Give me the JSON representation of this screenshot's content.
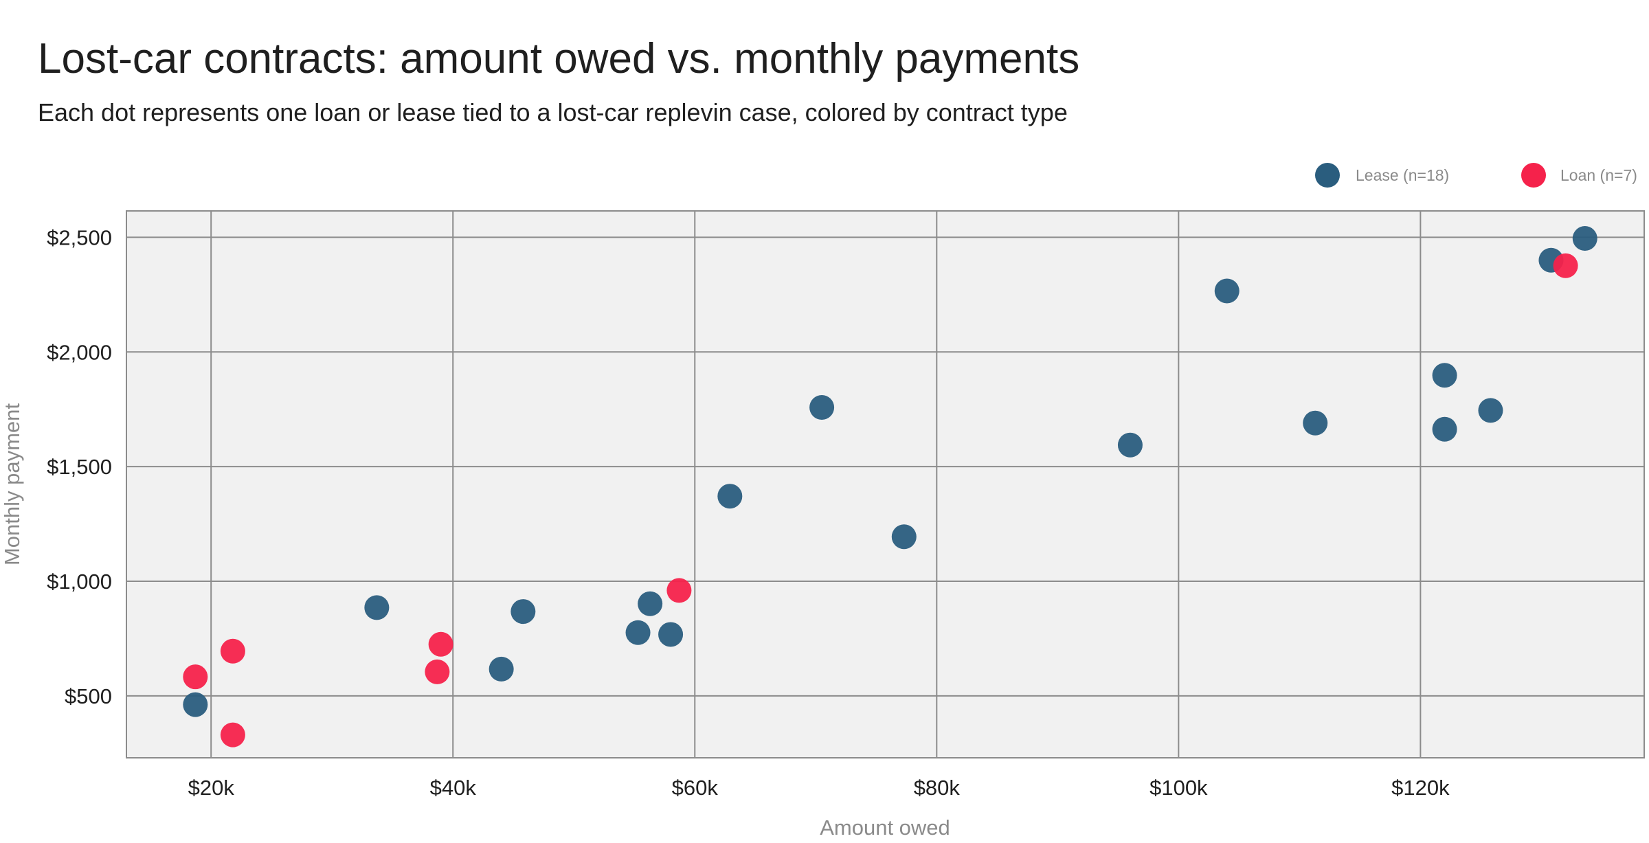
{
  "chart_data": {
    "type": "scatter",
    "title": "Lost-car contracts: amount owed vs. monthly payments",
    "subtitle": "Each dot represents one loan or lease tied to a lost-car replevin case, colored by contract type",
    "xlabel": "Amount owed",
    "ylabel": "Monthly payment",
    "xlim": [
      13000,
      138500
    ],
    "ylim": [
      230,
      2615
    ],
    "xticks": [
      20000,
      40000,
      60000,
      80000,
      100000,
      120000
    ],
    "xtick_labels": [
      "$20k",
      "$40k",
      "$60k",
      "$80k",
      "$100k",
      "$120k"
    ],
    "yticks": [
      500,
      1000,
      1500,
      2000,
      2500
    ],
    "ytick_labels": [
      "$500",
      "$1,000",
      "$1,500",
      "$2,000",
      "$2,500"
    ],
    "grid": true,
    "legend_position": "top-right",
    "series": [
      {
        "name": "Lease (n=18)",
        "color": "#2a5d7e",
        "points": [
          [
            18700,
            462
          ],
          [
            33700,
            885
          ],
          [
            44000,
            617
          ],
          [
            45800,
            868
          ],
          [
            55300,
            776
          ],
          [
            56300,
            902
          ],
          [
            58000,
            768
          ],
          [
            62900,
            1371
          ],
          [
            70500,
            1758
          ],
          [
            77300,
            1194
          ],
          [
            96000,
            1594
          ],
          [
            104000,
            2266
          ],
          [
            111300,
            1690
          ],
          [
            122000,
            1898
          ],
          [
            122000,
            1663
          ],
          [
            125800,
            1745
          ],
          [
            130800,
            2400
          ],
          [
            133600,
            2495
          ]
        ]
      },
      {
        "name": "Loan (n=7)",
        "color": "#f5224b",
        "points": [
          [
            18700,
            583
          ],
          [
            21800,
            695
          ],
          [
            21800,
            330
          ],
          [
            38700,
            605
          ],
          [
            39000,
            725
          ],
          [
            58700,
            960
          ],
          [
            132000,
            2376
          ]
        ]
      }
    ]
  }
}
